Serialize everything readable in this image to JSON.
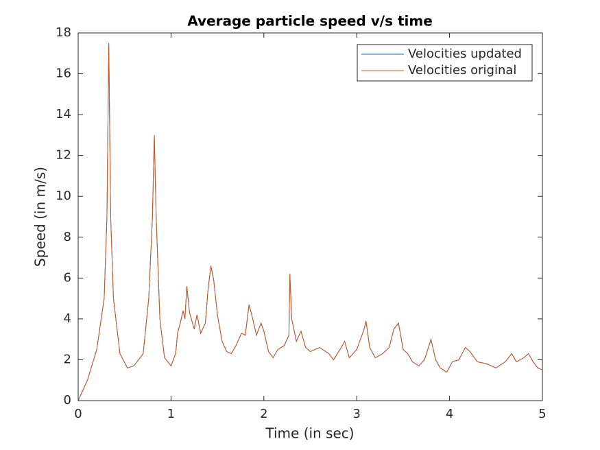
{
  "chart_data": {
    "type": "line",
    "title": "Average particle speed v/s time",
    "xlabel": "Time (in sec)",
    "ylabel": "Speed (in m/s)",
    "x": [
      0,
      0.1,
      0.2,
      0.28,
      0.31,
      0.33,
      0.35,
      0.38,
      0.45,
      0.53,
      0.6,
      0.7,
      0.76,
      0.8,
      0.82,
      0.84,
      0.88,
      0.93,
      1.0,
      1.05,
      1.07,
      1.1,
      1.13,
      1.15,
      1.17,
      1.2,
      1.25,
      1.28,
      1.32,
      1.37,
      1.4,
      1.43,
      1.46,
      1.5,
      1.55,
      1.6,
      1.65,
      1.7,
      1.76,
      1.8,
      1.84,
      1.88,
      1.92,
      1.97,
      2.0,
      2.05,
      2.1,
      2.15,
      2.22,
      2.27,
      2.28,
      2.3,
      2.35,
      2.4,
      2.45,
      2.5,
      2.6,
      2.7,
      2.75,
      2.82,
      2.87,
      2.92,
      3.0,
      3.08,
      3.1,
      3.14,
      3.2,
      3.28,
      3.35,
      3.4,
      3.45,
      3.5,
      3.55,
      3.6,
      3.67,
      3.73,
      3.8,
      3.85,
      3.9,
      3.97,
      4.03,
      4.1,
      4.17,
      4.22,
      4.3,
      4.4,
      4.5,
      4.6,
      4.67,
      4.72,
      4.8,
      4.85,
      4.9,
      4.95,
      5.0
    ],
    "series": [
      {
        "name": "Velocities updated",
        "color": "#0072bd",
        "values": [
          0,
          1.0,
          2.5,
          5,
          9,
          17.5,
          9,
          5,
          2.3,
          1.6,
          1.7,
          2.3,
          5,
          9,
          13,
          9,
          4,
          2.1,
          1.7,
          2.3,
          3.3,
          3.8,
          4.4,
          4.0,
          5.6,
          4.3,
          3.5,
          4.2,
          3.3,
          3.8,
          5.5,
          6.6,
          5.9,
          4.2,
          2.9,
          2.4,
          2.3,
          2.7,
          3.3,
          3.2,
          4.7,
          4.0,
          3.2,
          3.8,
          3.4,
          2.4,
          2.1,
          2.5,
          2.7,
          3.2,
          6.2,
          4.0,
          2.9,
          3.4,
          2.6,
          2.4,
          2.6,
          2.3,
          2.0,
          2.5,
          2.9,
          2.1,
          2.5,
          3.5,
          3.9,
          2.6,
          2.1,
          2.3,
          2.6,
          3.5,
          3.8,
          2.5,
          2.3,
          1.9,
          1.7,
          2.0,
          3.0,
          2.0,
          1.6,
          1.4,
          1.9,
          2.0,
          2.6,
          2.4,
          1.9,
          1.8,
          1.6,
          1.9,
          2.3,
          1.9,
          2.1,
          2.3,
          1.9,
          1.6,
          1.5
        ]
      },
      {
        "name": "Velocities original",
        "color": "#d95319",
        "values": [
          0,
          1.0,
          2.5,
          5,
          9,
          17.4,
          9,
          5,
          2.3,
          1.6,
          1.7,
          2.3,
          5,
          9,
          13,
          9,
          4,
          2.1,
          1.7,
          2.3,
          3.3,
          3.8,
          4.4,
          4.0,
          5.6,
          4.3,
          3.5,
          4.2,
          3.3,
          3.8,
          5.5,
          6.6,
          5.9,
          4.2,
          2.9,
          2.4,
          2.3,
          2.7,
          3.3,
          3.2,
          4.7,
          4.0,
          3.2,
          3.8,
          3.4,
          2.4,
          2.1,
          2.5,
          2.7,
          3.2,
          6.2,
          4.0,
          2.9,
          3.4,
          2.6,
          2.4,
          2.6,
          2.3,
          2.0,
          2.5,
          2.9,
          2.1,
          2.5,
          3.5,
          3.9,
          2.6,
          2.1,
          2.3,
          2.6,
          3.5,
          3.8,
          2.5,
          2.3,
          1.9,
          1.7,
          2.0,
          3.0,
          2.0,
          1.6,
          1.4,
          1.9,
          2.0,
          2.6,
          2.4,
          1.9,
          1.8,
          1.6,
          1.9,
          2.3,
          1.9,
          2.1,
          2.3,
          1.9,
          1.6,
          1.5
        ]
      }
    ],
    "xlim": [
      0,
      5
    ],
    "xticks": [
      0,
      1,
      2,
      3,
      4,
      5
    ],
    "ylim": [
      0,
      18
    ],
    "yticks": [
      0,
      2,
      4,
      6,
      8,
      10,
      12,
      14,
      16,
      18
    ],
    "legend": "northeast"
  }
}
